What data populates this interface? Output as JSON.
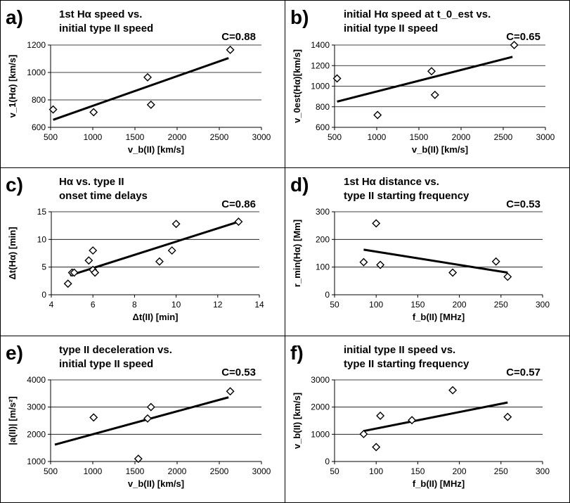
{
  "chart_data": [
    {
      "letter": "a)",
      "type": "scatter",
      "title_lines": [
        "1st Hα speed vs.",
        "initial type II speed"
      ],
      "correlation": "C=0.88",
      "xlabel": "v_b(II) [km/s]",
      "ylabel": "v_1(Hα) [km/s]",
      "xlim": [
        500,
        3000
      ],
      "ylim": [
        600,
        1200
      ],
      "xticks": [
        500,
        1000,
        1500,
        2000,
        2500,
        3000
      ],
      "yticks": [
        600,
        800,
        1000,
        1200
      ],
      "horizontal_gridlines": true,
      "points": [
        [
          530,
          730
        ],
        [
          1010,
          710
        ],
        [
          1650,
          965
        ],
        [
          1690,
          765
        ],
        [
          2630,
          1165
        ]
      ],
      "fit_line": [
        [
          530,
          655
        ],
        [
          2610,
          1105
        ]
      ]
    },
    {
      "letter": "b)",
      "type": "scatter",
      "title_lines": [
        "initial Hα speed at t_0_est vs.",
        "initial type II speed"
      ],
      "correlation": "C=0.65",
      "xlabel": "v_b(II) [km/s]",
      "ylabel": "v_0est(Hα)[km/s]",
      "xlim": [
        500,
        3000
      ],
      "ylim": [
        600,
        1400
      ],
      "xticks": [
        500,
        1000,
        1500,
        2000,
        2500,
        3000
      ],
      "yticks": [
        600,
        800,
        1000,
        1200,
        1400
      ],
      "horizontal_gridlines": true,
      "points": [
        [
          530,
          1075
        ],
        [
          1010,
          720
        ],
        [
          1650,
          1145
        ],
        [
          1690,
          915
        ],
        [
          2630,
          1400
        ]
      ],
      "fit_line": [
        [
          530,
          850
        ],
        [
          2610,
          1285
        ]
      ]
    },
    {
      "letter": "c)",
      "type": "scatter",
      "title_lines": [
        "Hα vs. type II",
        "onset time delays"
      ],
      "correlation": "C=0.86",
      "xlabel": "Δt(II) [min]",
      "ylabel": "Δt(Hα) [min]",
      "xlim": [
        4,
        14
      ],
      "ylim": [
        0,
        15
      ],
      "xticks": [
        4,
        6,
        8,
        10,
        12,
        14
      ],
      "yticks": [
        0,
        5,
        10,
        15
      ],
      "horizontal_gridlines": true,
      "points": [
        [
          4.8,
          2
        ],
        [
          5.0,
          4
        ],
        [
          5.1,
          4
        ],
        [
          5.8,
          6.2
        ],
        [
          6.0,
          8
        ],
        [
          6.0,
          4.5
        ],
        [
          6.1,
          4
        ],
        [
          9.2,
          6
        ],
        [
          9.8,
          8
        ],
        [
          10.0,
          12.8
        ],
        [
          13.0,
          13.2
        ]
      ],
      "fit_line": [
        [
          4.9,
          3.5
        ],
        [
          13.0,
          13.2
        ]
      ]
    },
    {
      "letter": "d)",
      "type": "scatter",
      "title_lines": [
        "1st Hα distance vs.",
        "type II starting frequency"
      ],
      "correlation": "C=0.53",
      "xlabel": "f_b(II) [MHz]",
      "ylabel": "r_min(Hα) [Mm]",
      "xlim": [
        50,
        300
      ],
      "ylim": [
        0,
        300
      ],
      "xticks": [
        50,
        100,
        150,
        200,
        250,
        300
      ],
      "yticks": [
        0,
        100,
        200,
        300
      ],
      "horizontal_gridlines": true,
      "points": [
        [
          85,
          118
        ],
        [
          100,
          258
        ],
        [
          105,
          108
        ],
        [
          192,
          80
        ],
        [
          244,
          120
        ],
        [
          258,
          65
        ]
      ],
      "fit_line": [
        [
          85,
          163
        ],
        [
          258,
          80
        ]
      ]
    },
    {
      "letter": "e)",
      "type": "scatter",
      "title_lines": [
        "type II deceleration vs.",
        "initial type II speed"
      ],
      "correlation": "C=0.53",
      "xlabel": "v_b(II) [km/s]",
      "ylabel": "|a(II)| [m/s²]",
      "xlim": [
        500,
        3000
      ],
      "ylim": [
        1000,
        4000
      ],
      "xticks": [
        500,
        1000,
        1500,
        2000,
        2500,
        3000
      ],
      "yticks": [
        1000,
        2000,
        3000,
        4000
      ],
      "horizontal_gridlines": true,
      "points": [
        [
          1010,
          2620
        ],
        [
          1540,
          1100
        ],
        [
          1650,
          2580
        ],
        [
          1690,
          3000
        ],
        [
          2630,
          3580
        ]
      ],
      "fit_line": [
        [
          550,
          1620
        ],
        [
          2610,
          3360
        ]
      ]
    },
    {
      "letter": "f)",
      "type": "scatter",
      "title_lines": [
        "initial type II speed vs.",
        "type II starting frequency"
      ],
      "correlation": "C=0.57",
      "xlabel": "f_b(II) [MHz]",
      "ylabel": "v_b(II) [km/s]",
      "xlim": [
        50,
        300
      ],
      "ylim": [
        0,
        3000
      ],
      "xticks": [
        50,
        100,
        150,
        200,
        250,
        300
      ],
      "yticks": [
        0,
        1000,
        2000,
        3000
      ],
      "horizontal_gridlines": true,
      "points": [
        [
          85,
          1010
        ],
        [
          100,
          530
        ],
        [
          105,
          1680
        ],
        [
          143,
          1520
        ],
        [
          192,
          2620
        ],
        [
          258,
          1640
        ]
      ],
      "fit_line": [
        [
          85,
          1120
        ],
        [
          258,
          2170
        ]
      ]
    }
  ]
}
